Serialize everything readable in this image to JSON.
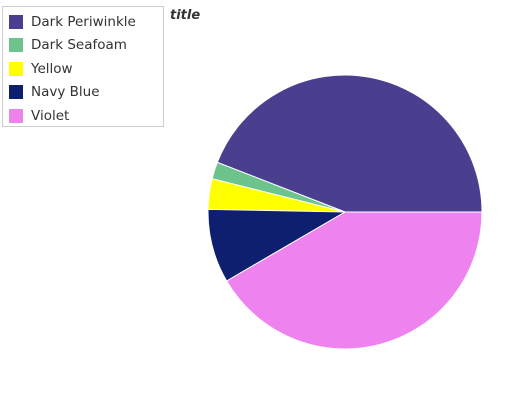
{
  "chart_data": {
    "type": "pie",
    "title": "title",
    "legend_position": "top-left",
    "slices": [
      {
        "label": "Dark Periwinkle",
        "value": 44.1,
        "color": "#4a3f8f"
      },
      {
        "label": "Dark Seafoam",
        "value": 2.0,
        "color": "#6cc48c"
      },
      {
        "label": "Yellow",
        "value": 3.6,
        "color": "#ffff00"
      },
      {
        "label": "Navy Blue",
        "value": 8.7,
        "color": "#0d1f6e"
      },
      {
        "label": "Violet",
        "value": 41.6,
        "color": "#ee82ee"
      }
    ]
  }
}
